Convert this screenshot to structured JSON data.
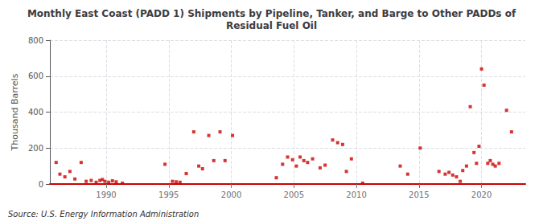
{
  "chart_data": {
    "type": "scatter",
    "title": "Monthly East Coast (PADD 1) Shipments by Pipeline, Tanker, and Barge to Other PADDs of\nResidual Fuel Oil",
    "ylabel": "Thousand Barrels",
    "annotations": [
      "Source: U.S. Energy Information Administration"
    ],
    "x": [
      1986.0,
      1986.3,
      1986.7,
      1987.1,
      1987.5,
      1988.0,
      1988.4,
      1988.8,
      1989.2,
      1989.5,
      1989.7,
      1989.9,
      1990.2,
      1990.5,
      1990.8,
      1991.3,
      1994.7,
      1995.3,
      1995.6,
      1995.9,
      1996.4,
      1997.0,
      1997.4,
      1997.7,
      1998.2,
      1998.6,
      1999.1,
      1999.5,
      2000.1,
      2003.6,
      2004.1,
      2004.5,
      2004.9,
      2005.2,
      2005.5,
      2005.8,
      2006.1,
      2006.5,
      2007.1,
      2007.5,
      2008.1,
      2008.5,
      2008.9,
      2009.2,
      2009.6,
      2010.5,
      2013.5,
      2014.1,
      2015.1,
      2016.6,
      2017.1,
      2017.4,
      2017.7,
      2018.0,
      2018.3,
      2018.5,
      2018.8,
      2019.1,
      2019.4,
      2019.6,
      2019.8,
      2020.0,
      2020.2,
      2020.5,
      2020.7,
      2020.9,
      2021.1,
      2021.4,
      2022.0,
      2022.4
    ],
    "values": [
      120,
      55,
      40,
      70,
      28,
      120,
      15,
      20,
      10,
      20,
      25,
      15,
      10,
      18,
      12,
      5,
      110,
      15,
      12,
      10,
      58,
      290,
      100,
      85,
      270,
      130,
      290,
      130,
      270,
      35,
      110,
      150,
      135,
      100,
      150,
      130,
      120,
      140,
      90,
      105,
      245,
      230,
      220,
      70,
      140,
      5,
      100,
      55,
      200,
      70,
      55,
      65,
      50,
      40,
      15,
      75,
      100,
      430,
      175,
      115,
      210,
      640,
      550,
      115,
      130,
      110,
      100,
      115,
      410,
      290
    ],
    "color": "#cc0000",
    "marker": "square",
    "xlim": [
      1985.5,
      2023.5
    ],
    "xticks": [
      1990,
      1995,
      2000,
      2005,
      2010,
      2015,
      2020
    ],
    "ylim": [
      0,
      800
    ],
    "yticks": [
      0,
      200,
      400,
      600,
      800
    ],
    "grid": true
  }
}
